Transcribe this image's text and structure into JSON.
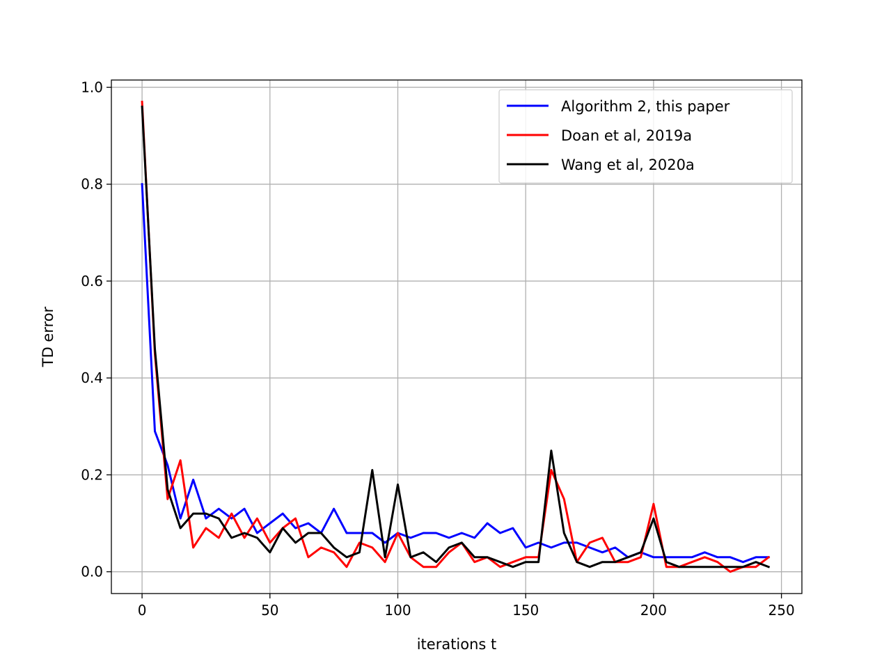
{
  "chart_data": {
    "type": "line",
    "title": "",
    "xlabel": "iterations t",
    "ylabel": "TD error",
    "xlim": [
      -12,
      258
    ],
    "ylim": [
      -0.045,
      1.015
    ],
    "xticks": [
      0,
      50,
      100,
      150,
      200,
      250
    ],
    "yticks": [
      0.0,
      0.2,
      0.4,
      0.6,
      0.8,
      1.0
    ],
    "xtick_labels": [
      "0",
      "50",
      "100",
      "150",
      "200",
      "250"
    ],
    "ytick_labels": [
      "0.0",
      "0.2",
      "0.4",
      "0.6",
      "0.8",
      "1.0"
    ],
    "grid": true,
    "legend_position": "top-right",
    "x": [
      0,
      5,
      10,
      15,
      20,
      25,
      30,
      35,
      40,
      45,
      50,
      55,
      60,
      65,
      70,
      75,
      80,
      85,
      90,
      95,
      100,
      105,
      110,
      115,
      120,
      125,
      130,
      135,
      140,
      145,
      150,
      155,
      160,
      165,
      170,
      175,
      180,
      185,
      190,
      195,
      200,
      205,
      210,
      215,
      220,
      225,
      230,
      235,
      240,
      245
    ],
    "series": [
      {
        "name": "Algorithm 2, this paper",
        "color": "#0000ff",
        "values": [
          0.8,
          0.29,
          0.22,
          0.11,
          0.19,
          0.11,
          0.13,
          0.11,
          0.13,
          0.08,
          0.1,
          0.12,
          0.09,
          0.1,
          0.08,
          0.13,
          0.08,
          0.08,
          0.08,
          0.06,
          0.08,
          0.07,
          0.08,
          0.08,
          0.07,
          0.08,
          0.07,
          0.1,
          0.08,
          0.09,
          0.05,
          0.06,
          0.05,
          0.06,
          0.06,
          0.05,
          0.04,
          0.05,
          0.03,
          0.04,
          0.03,
          0.03,
          0.03,
          0.03,
          0.04,
          0.03,
          0.03,
          0.02,
          0.03,
          0.03
        ]
      },
      {
        "name": "Doan et al, 2019a",
        "color": "#ff0000",
        "values": [
          0.97,
          0.45,
          0.15,
          0.23,
          0.05,
          0.09,
          0.07,
          0.12,
          0.07,
          0.11,
          0.06,
          0.09,
          0.11,
          0.03,
          0.05,
          0.04,
          0.01,
          0.06,
          0.05,
          0.02,
          0.08,
          0.03,
          0.01,
          0.01,
          0.04,
          0.06,
          0.02,
          0.03,
          0.01,
          0.02,
          0.03,
          0.03,
          0.21,
          0.15,
          0.02,
          0.06,
          0.07,
          0.02,
          0.02,
          0.03,
          0.14,
          0.01,
          0.01,
          0.02,
          0.03,
          0.02,
          0.0,
          0.01,
          0.01,
          0.03
        ]
      },
      {
        "name": "Wang et al, 2020a",
        "color": "#000000",
        "values": [
          0.96,
          0.46,
          0.17,
          0.09,
          0.12,
          0.12,
          0.11,
          0.07,
          0.08,
          0.07,
          0.04,
          0.09,
          0.06,
          0.08,
          0.08,
          0.05,
          0.03,
          0.04,
          0.21,
          0.03,
          0.18,
          0.03,
          0.04,
          0.02,
          0.05,
          0.06,
          0.03,
          0.03,
          0.02,
          0.01,
          0.02,
          0.02,
          0.25,
          0.08,
          0.02,
          0.01,
          0.02,
          0.02,
          0.03,
          0.04,
          0.11,
          0.02,
          0.01,
          0.01,
          0.01,
          0.01,
          0.01,
          0.01,
          0.02,
          0.01
        ]
      }
    ]
  }
}
